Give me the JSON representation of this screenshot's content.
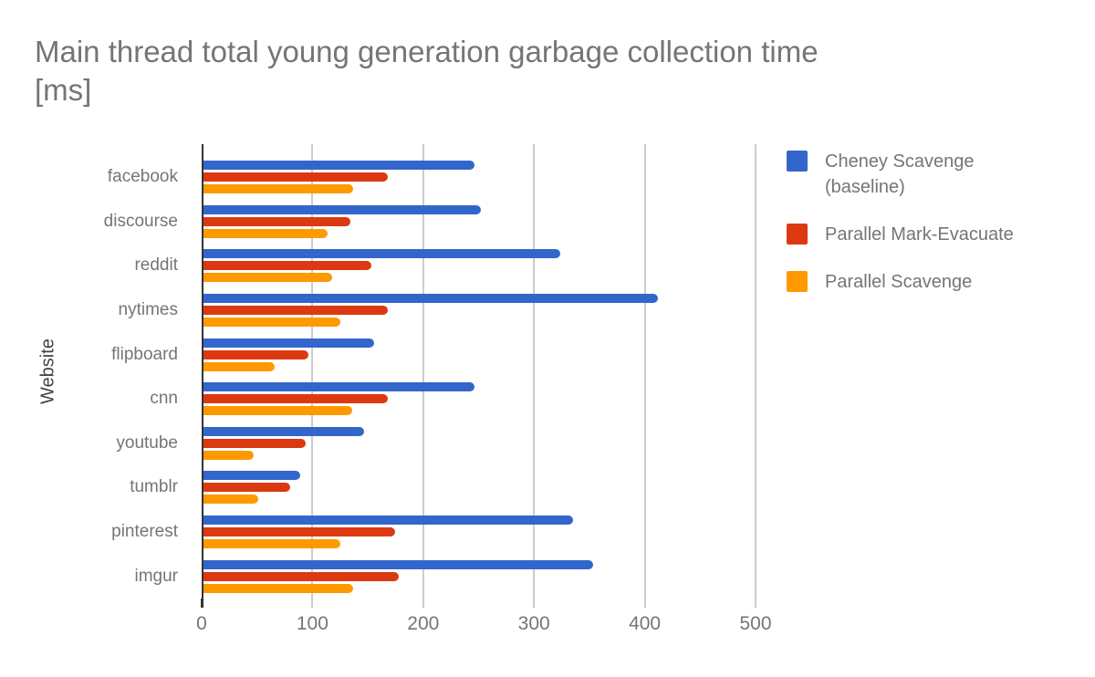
{
  "title": "Main thread total young generation garbage collection time\n[ms]",
  "chart_data": {
    "type": "bar",
    "orientation": "horizontal",
    "title": "Main thread total young generation garbage collection time [ms]",
    "ylabel": "Website",
    "xlabel": "",
    "xlim": [
      0,
      500
    ],
    "x_ticks": [
      0,
      100,
      200,
      300,
      400,
      500
    ],
    "grid": true,
    "legend_position": "right",
    "categories": [
      "facebook",
      "discourse",
      "reddit",
      "nytimes",
      "flipboard",
      "cnn",
      "youtube",
      "tumblr",
      "pinterest",
      "imgur"
    ],
    "series": [
      {
        "name": "Cheney Scavenge (baseline)",
        "color": "#3366CC",
        "values": [
          246,
          252,
          324,
          412,
          156,
          246,
          147,
          89,
          335,
          353
        ]
      },
      {
        "name": "Parallel Mark-Evacuate",
        "color": "#DC3912",
        "values": [
          168,
          134,
          153,
          168,
          96,
          168,
          94,
          80,
          175,
          178
        ]
      },
      {
        "name": "Parallel Scavenge",
        "color": "#FF9900",
        "values": [
          137,
          114,
          118,
          125,
          66,
          136,
          47,
          51,
          125,
          137
        ]
      }
    ]
  },
  "colors": {
    "background": "#ffffff",
    "title_text": "#757575",
    "axis_line": "#333333",
    "gridline": "#cccccc",
    "tick_text": "#757575",
    "category_text": "#757575",
    "ylabel_text": "#424242",
    "legend_text": "#757575"
  }
}
